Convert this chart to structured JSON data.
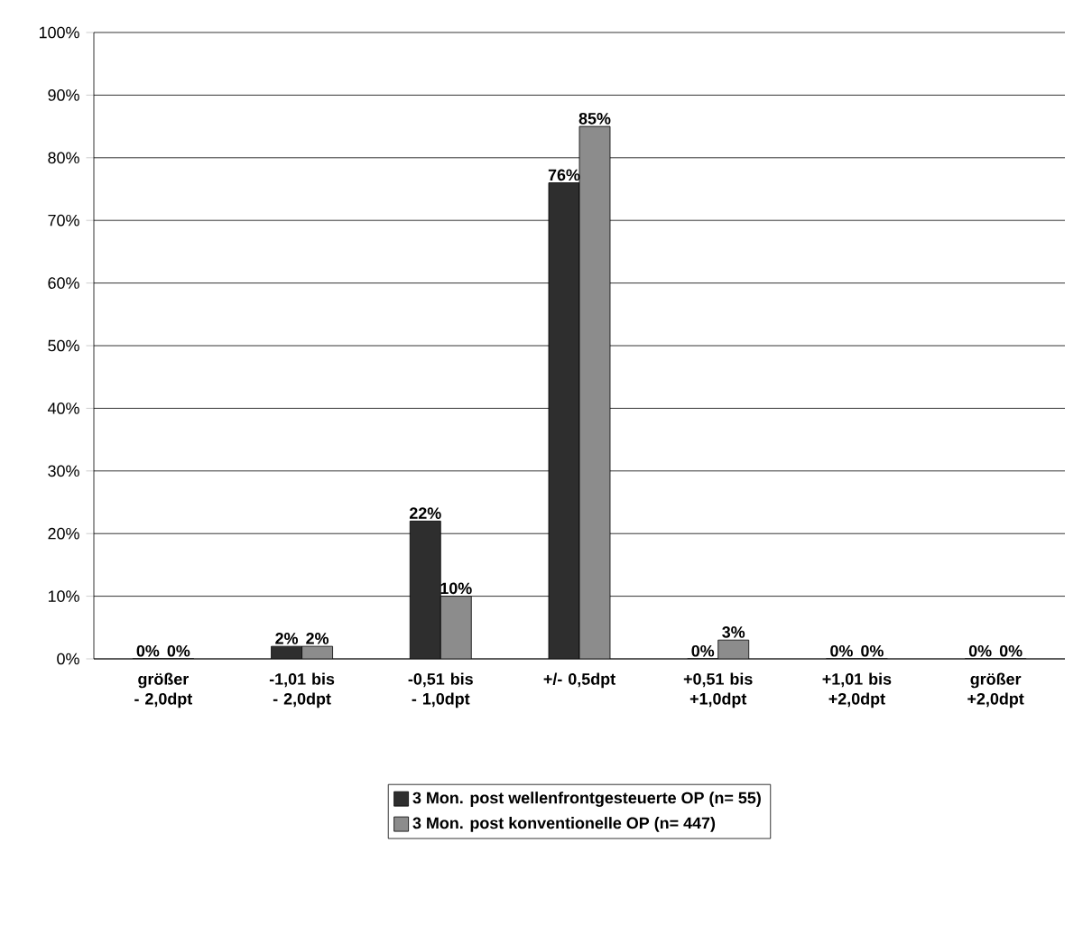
{
  "chart_data": {
    "type": "bar",
    "categories": [
      "größer - 2,0dpt",
      "-1,01 bis - 2,0dpt",
      "-0,51 bis - 1,0dpt",
      "+/- 0,5dpt",
      "+0,51 bis +1,0dpt",
      "+1,01 bis +2,0dpt",
      "größer +2,0dpt"
    ],
    "series": [
      {
        "name": "3 Mon. post wellenfrontgesteuerte OP (n= 55)",
        "color": "#2e2e2e",
        "values": [
          0,
          2,
          22,
          76,
          0,
          0,
          0
        ],
        "value_labels": [
          "0%",
          "2%",
          "22%",
          "76%",
          "0%",
          "0%",
          "0%"
        ]
      },
      {
        "name": "3 Mon. post konventionelle OP (n= 447)",
        "color": "#8c8c8c",
        "values": [
          0,
          2,
          10,
          85,
          3,
          0,
          0
        ],
        "value_labels": [
          "0%",
          "2%",
          "10%",
          "85%",
          "3%",
          "0%",
          "0%"
        ]
      }
    ],
    "ylim": [
      0,
      100
    ],
    "yticks": [
      {
        "value": 0,
        "label": "0%"
      },
      {
        "value": 10,
        "label": "10%"
      },
      {
        "value": 20,
        "label": "20%"
      },
      {
        "value": 30,
        "label": "30%"
      },
      {
        "value": 40,
        "label": "40%"
      },
      {
        "value": 50,
        "label": "50%"
      },
      {
        "value": 60,
        "label": "60%"
      },
      {
        "value": 70,
        "label": "70%"
      },
      {
        "value": 80,
        "label": "80%"
      },
      {
        "value": 90,
        "label": "90%"
      },
      {
        "value": 100,
        "label": "100%"
      }
    ],
    "grid": "y",
    "legend": "bottom"
  }
}
